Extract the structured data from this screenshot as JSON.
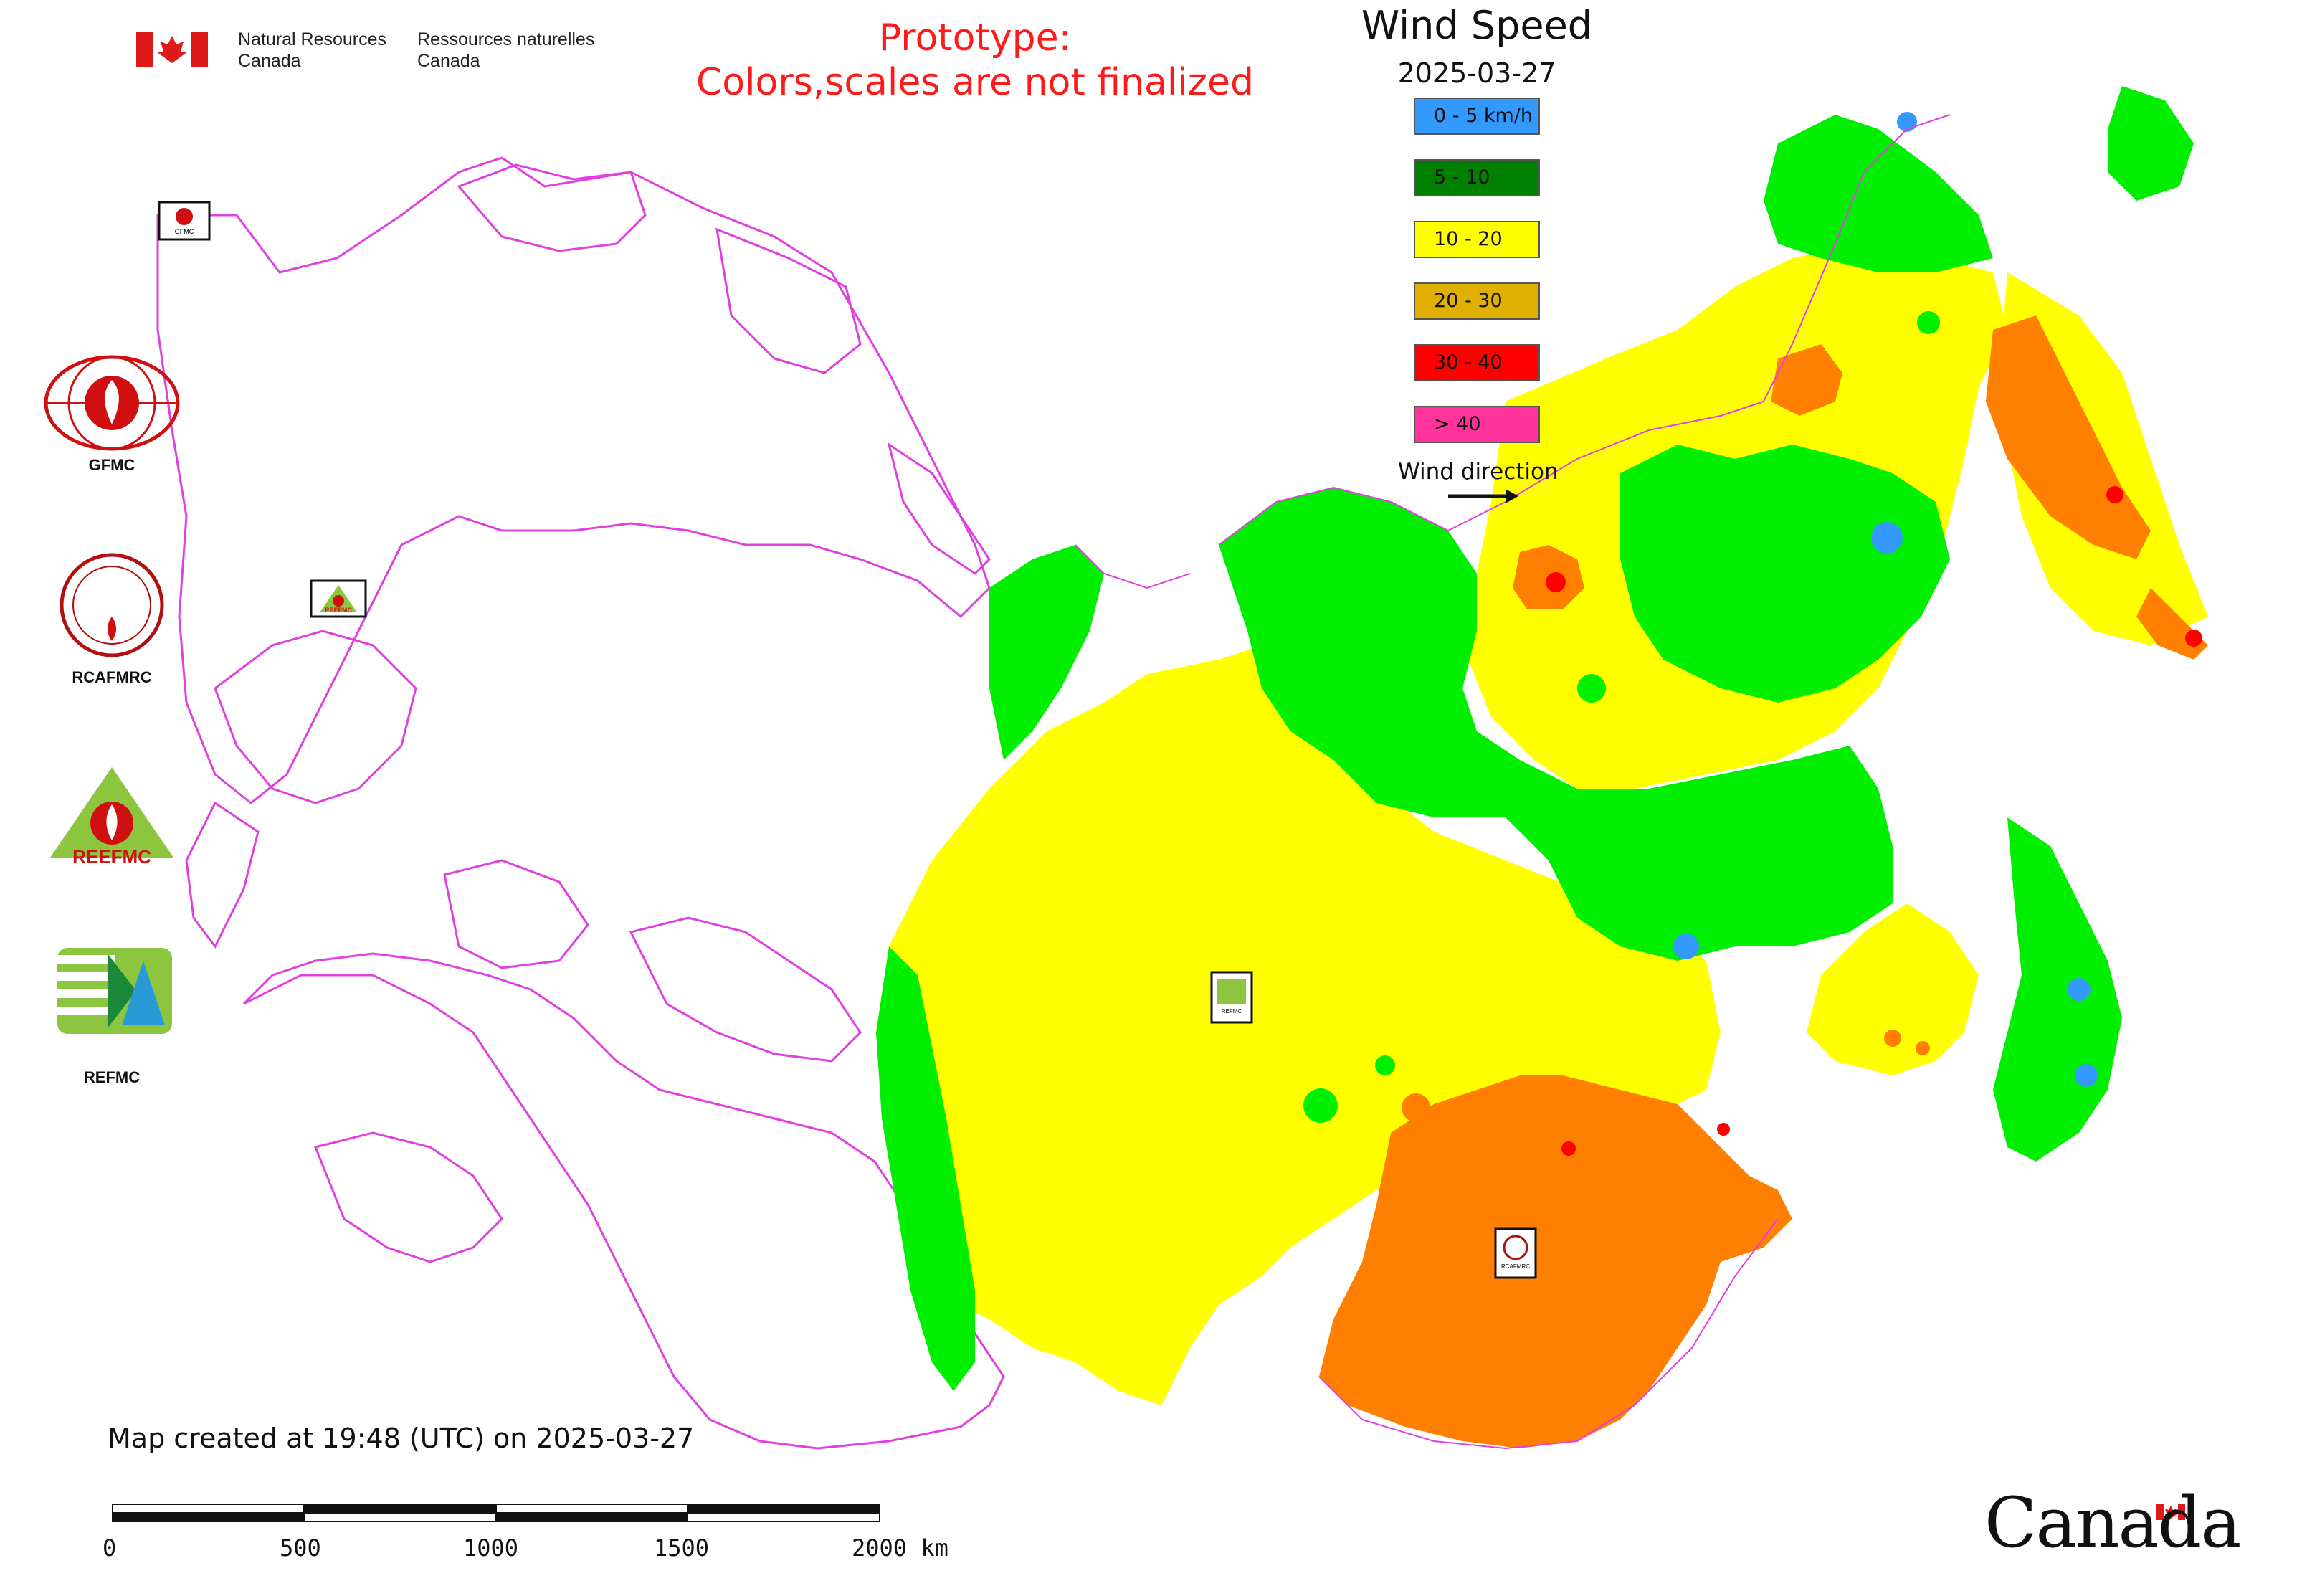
{
  "header": {
    "agency_en_1": "Natural Resources",
    "agency_en_2": "Canada",
    "agency_fr_1": "Ressources naturelles",
    "agency_fr_2": "Canada",
    "prototype_line1": "Prototype:",
    "prototype_line2": "Colors,scales are not finalized",
    "title": "Wind Speed",
    "date": "2025-03-27"
  },
  "legend": {
    "items": [
      {
        "label": "0 - 5 km/h",
        "color": "#3399ff"
      },
      {
        "label": "5 - 10",
        "color": "#008000"
      },
      {
        "label": "10 - 20",
        "color": "#ffff00"
      },
      {
        "label": "20 - 30",
        "color": "#e0b000"
      },
      {
        "label": "30 - 40",
        "color": "#ff0000"
      },
      {
        "label": "> 40",
        "color": "#ff3399"
      }
    ],
    "wind_direction_label": "Wind direction"
  },
  "logos": [
    {
      "label": "GFMC",
      "icon": "gfmc-logo-icon"
    },
    {
      "label": "RCAFMRC",
      "icon": "rcafmrc-logo-icon"
    },
    {
      "label": "",
      "icon": "reefmc-logo-icon",
      "wordmark": "REEFMC"
    },
    {
      "label": "REFMC",
      "icon": "refmc-logo-icon"
    }
  ],
  "map_markers": [
    {
      "label": "GFMC",
      "icon": "gfmc-marker-icon"
    },
    {
      "label": "REEFMC",
      "icon": "reefmc-marker-icon"
    },
    {
      "label": "REFMC",
      "icon": "refmc-marker-icon"
    },
    {
      "label": "RCAFMRC",
      "icon": "rcafmrc-marker-icon"
    }
  ],
  "footer": {
    "created_text": "Map created at 19:48 (UTC) on 2025-03-27",
    "scale_ticks": [
      "0",
      "500",
      "1000",
      "1500",
      "2000 km"
    ],
    "canada_wordmark": "Canada"
  },
  "colors": {
    "outline": "#e040e0",
    "green": "#00ee00",
    "yellow": "#ffff00",
    "orange": "#ff8000",
    "red": "#ff0000",
    "blue": "#3399ff"
  }
}
